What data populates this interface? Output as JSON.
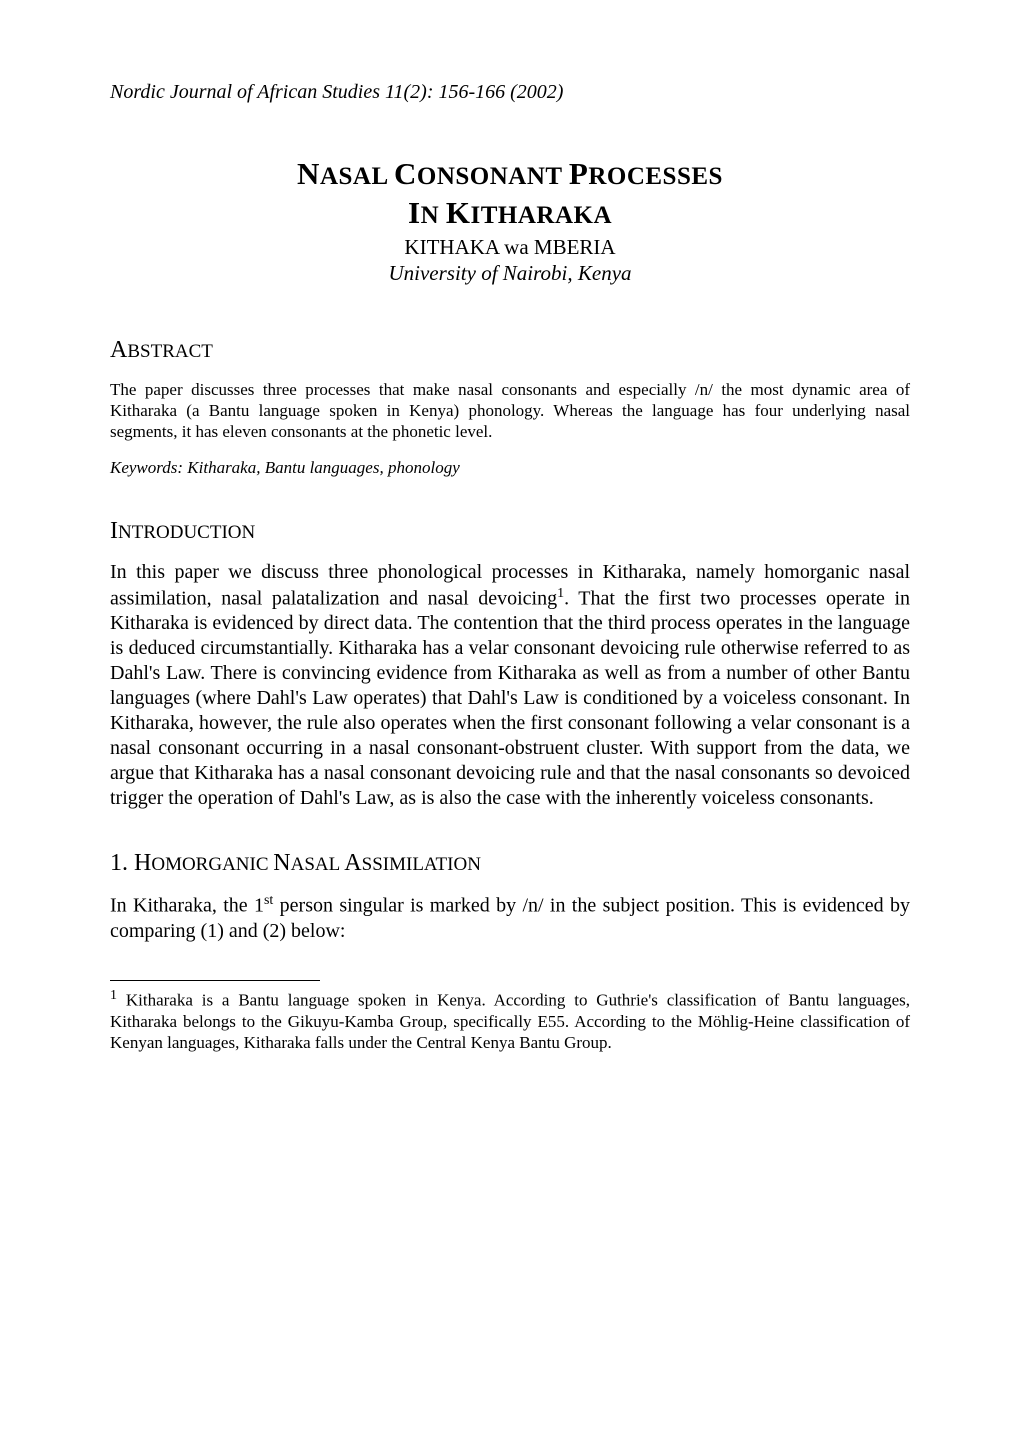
{
  "journal_header": "Nordic Journal of African Studies 11(2): 156-166 (2002)",
  "title": {
    "line1_lead": "N",
    "line1_rest": "ASAL ",
    "line1_lead2": "C",
    "line1_rest2": "ONSONANT ",
    "line1_lead3": "P",
    "line1_rest3": "ROCESSES",
    "line2_lead": "I",
    "line2_rest": "N ",
    "line2_lead2": "K",
    "line2_rest2": "ITHARAKA"
  },
  "author": "KITHAKA wa MBERIA",
  "affiliation": "University of Nairobi, Kenya",
  "sections": {
    "abstract": {
      "heading_first": "A",
      "heading_rest": "BSTRACT",
      "text": "The paper discusses three processes that make nasal consonants and especially /n/ the most dynamic area of Kitharaka (a Bantu language spoken in Kenya) phonology. Whereas the language has four underlying nasal segments, it has eleven consonants at the phonetic level.",
      "keywords_label": "Keywords:  ",
      "keywords": "Kitharaka, Bantu languages, phonology"
    },
    "introduction": {
      "heading_first": "I",
      "heading_rest": "NTRODUCTION",
      "para1_part1": "In this paper we discuss three phonological processes in Kitharaka, namely homorganic nasal assimilation, nasal palatalization and nasal devoicing",
      "para1_fn": "1",
      "para1_part2": ". That the first two processes operate in Kitharaka is evidenced by direct data. The contention that the third process operates in the language is deduced circumstantially. Kitharaka has a velar consonant devoicing rule otherwise referred to as Dahl's Law. There is convincing evidence from Kitharaka as well as from a number of other Bantu languages (where Dahl's Law operates) that Dahl's Law is conditioned by a voiceless consonant. In Kitharaka, however, the rule also operates when the first consonant following a velar consonant is a nasal consonant occurring in a nasal consonant-obstruent cluster. With support from the data, we argue that Kitharaka has a nasal consonant devoicing rule and that the nasal consonants so devoiced trigger the operation of Dahl's Law, as is also the case with the inherently voiceless consonants."
    },
    "section1": {
      "number": "1. ",
      "heading_first": "H",
      "heading_rest1": "OMORGANIC ",
      "heading_first2": "N",
      "heading_rest2": "ASAL ",
      "heading_first3": "A",
      "heading_rest3": "SSIMILATION",
      "para1_part1": "In Kitharaka, the 1",
      "para1_sup": "st",
      "para1_part2": " person singular is marked by /n/ in the subject position. This is evidenced by comparing (1) and (2) below:"
    }
  },
  "footnote": {
    "marker": "1",
    "text": " Kitharaka is a Bantu language spoken in Kenya. According to Guthrie's classification of Bantu languages, Kitharaka belongs to the Gikuyu-Kamba Group, specifically E55. According to the Möhlig-Heine classification of Kenyan languages, Kitharaka falls under the Central Kenya Bantu Group."
  }
}
